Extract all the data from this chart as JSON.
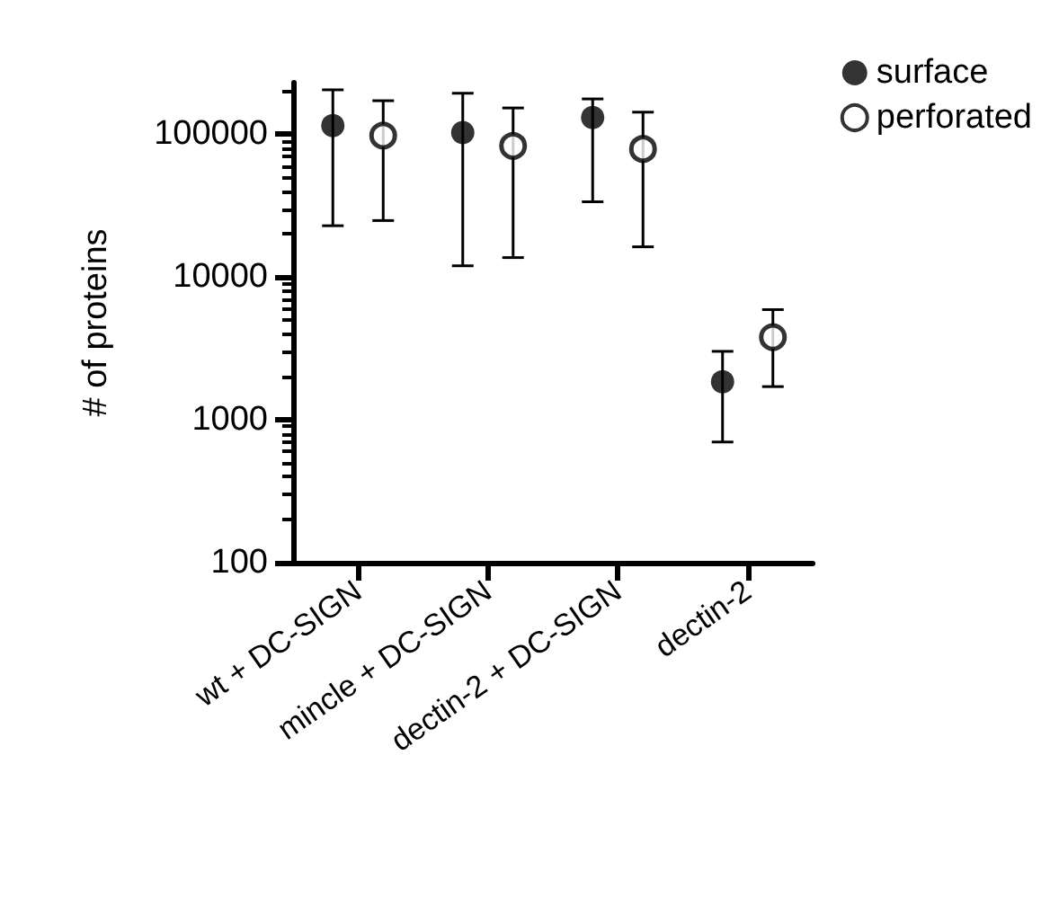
{
  "chart_data": {
    "type": "scatter",
    "ylabel": "# of proteins",
    "categories": [
      "wt + DC-SIGN",
      "mincle + DC-SIGN",
      "dectin-2 + DC-SIGN",
      "dectin-2"
    ],
    "series": [
      {
        "name": "surface",
        "color": "#000000",
        "values": [
          115000,
          103000,
          131000,
          1850
        ],
        "errors": [
          [
            22900,
            205000
          ],
          [
            12000,
            194000
          ],
          [
            33700,
            177000
          ],
          [
            700,
            3020
          ]
        ]
      },
      {
        "name": "perforated",
        "color": "#000000",
        "values": [
          98000,
          83000,
          79000,
          3800
        ],
        "errors": [
          [
            24900,
            172000
          ],
          [
            13700,
            153000
          ],
          [
            16300,
            143000
          ],
          [
            1710,
            5920
          ]
        ]
      }
    ],
    "log": "y",
    "ylim": [
      100,
      230000
    ],
    "yticks": [
      100,
      1000,
      10000,
      100000
    ],
    "grid": false,
    "legend": "top right",
    "marker": "circle"
  }
}
